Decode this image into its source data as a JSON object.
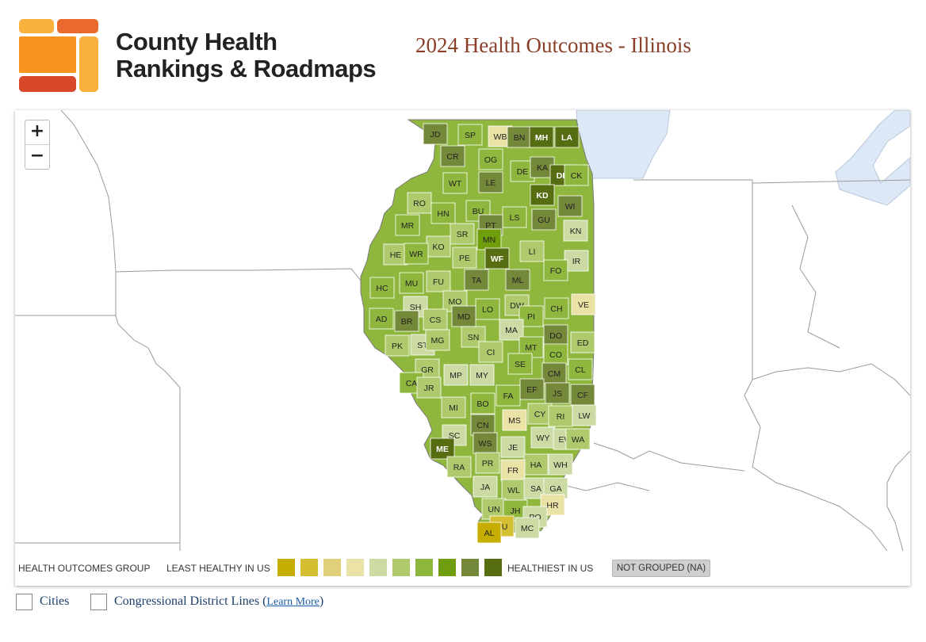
{
  "brand": {
    "name_line1": "County Health",
    "name_line2": "Rankings & Roadmaps",
    "colors": {
      "orange": "#f7941d",
      "red": "#d9482b",
      "lightorange": "#f9b13d"
    }
  },
  "page_title": "2024 Health Outcomes - Illinois",
  "map": {
    "zoom_in": "+",
    "zoom_out": "−",
    "counties": [
      {
        "label": "JD",
        "g": 2
      },
      {
        "label": "SP",
        "g": 4
      },
      {
        "label": "WB",
        "g": 7
      },
      {
        "label": "BN",
        "g": 2
      },
      {
        "label": "MH",
        "g": 1
      },
      {
        "label": "LA",
        "g": 1
      },
      {
        "label": "CR",
        "g": 2
      },
      {
        "label": "OG",
        "g": 4
      },
      {
        "label": "DE",
        "g": 4
      },
      {
        "label": "KA",
        "g": 2
      },
      {
        "label": "DP",
        "g": 1
      },
      {
        "label": "CK",
        "g": 4
      },
      {
        "label": "WT",
        "g": 4
      },
      {
        "label": "LE",
        "g": 2
      },
      {
        "label": "KD",
        "g": 1
      },
      {
        "label": "RO",
        "g": 5
      },
      {
        "label": "HN",
        "g": 4
      },
      {
        "label": "BU",
        "g": 4
      },
      {
        "label": "LS",
        "g": 4
      },
      {
        "label": "GU",
        "g": 2
      },
      {
        "label": "WI",
        "g": 2
      },
      {
        "label": "PT",
        "g": 2
      },
      {
        "label": "SR",
        "g": 5
      },
      {
        "label": "MN",
        "g": 3
      },
      {
        "label": "MR",
        "g": 4
      },
      {
        "label": "KN",
        "g": 6
      },
      {
        "label": "KO",
        "g": 5
      },
      {
        "label": "HE",
        "g": 5
      },
      {
        "label": "WR",
        "g": 4
      },
      {
        "label": "WF",
        "g": 1
      },
      {
        "label": "LI",
        "g": 5
      },
      {
        "label": "PE",
        "g": 5
      },
      {
        "label": "IR",
        "g": 6
      },
      {
        "label": "FO",
        "g": 4
      },
      {
        "label": "HC",
        "g": 4
      },
      {
        "label": "MU",
        "g": 4
      },
      {
        "label": "FU",
        "g": 5
      },
      {
        "label": "TA",
        "g": 2
      },
      {
        "label": "ML",
        "g": 2
      },
      {
        "label": "SH",
        "g": 6
      },
      {
        "label": "MO",
        "g": 5
      },
      {
        "label": "VE",
        "g": 7
      },
      {
        "label": "LO",
        "g": 4
      },
      {
        "label": "DW",
        "g": 5
      },
      {
        "label": "CH",
        "g": 4
      },
      {
        "label": "AD",
        "g": 4
      },
      {
        "label": "BR",
        "g": 2
      },
      {
        "label": "CS",
        "g": 5
      },
      {
        "label": "MD",
        "g": 2
      },
      {
        "label": "PI",
        "g": 4
      },
      {
        "label": "MA",
        "g": 6
      },
      {
        "label": "DO",
        "g": 2
      },
      {
        "label": "ST",
        "g": 6
      },
      {
        "label": "MG",
        "g": 5
      },
      {
        "label": "SN",
        "g": 5
      },
      {
        "label": "ED",
        "g": 5
      },
      {
        "label": "PK",
        "g": 5
      },
      {
        "label": "MT",
        "g": 4
      },
      {
        "label": "CI",
        "g": 5
      },
      {
        "label": "CO",
        "g": 4
      },
      {
        "label": "SE",
        "g": 4
      },
      {
        "label": "CL",
        "g": 4
      },
      {
        "label": "GR",
        "g": 5
      },
      {
        "label": "CM",
        "g": 2
      },
      {
        "label": "MP",
        "g": 6
      },
      {
        "label": "MY",
        "g": 6
      },
      {
        "label": "CA",
        "g": 4
      },
      {
        "label": "JR",
        "g": 5
      },
      {
        "label": "EF",
        "g": 2
      },
      {
        "label": "JS",
        "g": 2
      },
      {
        "label": "CF",
        "g": 2
      },
      {
        "label": "FA",
        "g": 4
      },
      {
        "label": "BO",
        "g": 4
      },
      {
        "label": "MI",
        "g": 5
      },
      {
        "label": "MS",
        "g": 7
      },
      {
        "label": "CY",
        "g": 5
      },
      {
        "label": "RI",
        "g": 5
      },
      {
        "label": "LW",
        "g": 6
      },
      {
        "label": "CN",
        "g": 2
      },
      {
        "label": "SC",
        "g": 6
      },
      {
        "label": "WY",
        "g": 6
      },
      {
        "label": "EW",
        "g": 6
      },
      {
        "label": "WA",
        "g": 5
      },
      {
        "label": "WS",
        "g": 2
      },
      {
        "label": "JE",
        "g": 6
      },
      {
        "label": "ME",
        "g": 1
      },
      {
        "label": "PR",
        "g": 5
      },
      {
        "label": "HA",
        "g": 5
      },
      {
        "label": "WH",
        "g": 6
      },
      {
        "label": "RA",
        "g": 5
      },
      {
        "label": "FR",
        "g": 7
      },
      {
        "label": "JA",
        "g": 6
      },
      {
        "label": "WL",
        "g": 5
      },
      {
        "label": "SA",
        "g": 6
      },
      {
        "label": "GA",
        "g": 6
      },
      {
        "label": "HR",
        "g": 7
      },
      {
        "label": "UN",
        "g": 5
      },
      {
        "label": "JH",
        "g": 4
      },
      {
        "label": "PO",
        "g": 6
      },
      {
        "label": "PU",
        "g": 9
      },
      {
        "label": "MC",
        "g": 6
      },
      {
        "label": "AL",
        "g": 11
      }
    ]
  },
  "legend": {
    "group_label": "HEALTH OUTCOMES GROUP",
    "least_label": "LEAST HEALTHY IN US",
    "healthiest_label": "HEALTHIEST IN US",
    "not_grouped_label": "NOT GROUPED (NA)",
    "swatches": [
      "#c5ae00",
      "#d4be32",
      "#e0d07c",
      "#ebe2a5",
      "#cbdba3",
      "#afca6c",
      "#8fb73e",
      "#6f9e0a",
      "#74883a",
      "#566d12"
    ],
    "not_grouped_color": "#cfcfcf"
  },
  "options": {
    "cities_label": "Cities",
    "districts_label": "Congressional District Lines (",
    "learn_more": "Learn More",
    "close_paren": ")"
  }
}
